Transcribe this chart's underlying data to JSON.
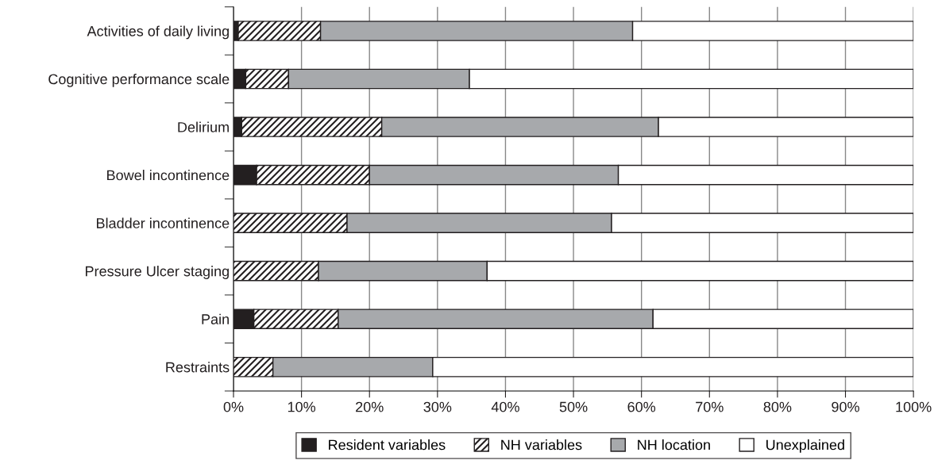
{
  "chart_data": {
    "type": "bar",
    "orientation": "horizontal",
    "stacked": true,
    "categories": [
      "Activities of daily living",
      "Cognitive performance scale",
      "Delirium",
      "Bowel incontinence",
      "Bladder incontinence",
      "Pressure Ulcer staging",
      "Pain",
      "Restraints"
    ],
    "series": [
      {
        "name": "Resident variables",
        "color": "#231f20",
        "values": [
          0.7,
          1.8,
          1.2,
          3.4,
          0,
          0,
          3.0,
          0
        ]
      },
      {
        "name": "NH variables",
        "color": "#231f20",
        "values": [
          12.1,
          6.3,
          20.6,
          16.6,
          16.7,
          12.5,
          12.4,
          5.8
        ]
      },
      {
        "name": "NH location",
        "color": "#a7a9ac",
        "values": [
          45.9,
          26.6,
          40.7,
          36.6,
          38.9,
          24.8,
          46.3,
          23.5
        ]
      },
      {
        "name": "Unexplained",
        "color": "#ffffff",
        "values": [
          41.3,
          65.3,
          37.5,
          43.4,
          44.4,
          62.7,
          38.3,
          70.7
        ]
      }
    ],
    "xlim": [
      0,
      100
    ],
    "xticks": [
      {
        "value": 0,
        "label": "0%"
      },
      {
        "value": 10,
        "label": "10%"
      },
      {
        "value": 20,
        "label": "20%"
      },
      {
        "value": 30,
        "label": "30%"
      },
      {
        "value": 40,
        "label": "40%"
      },
      {
        "value": 50,
        "label": "50%"
      },
      {
        "value": 60,
        "label": "60%"
      },
      {
        "value": 70,
        "label": "70%"
      },
      {
        "value": 80,
        "label": "80%"
      },
      {
        "value": 90,
        "label": "90%"
      },
      {
        "value": 100,
        "label": "100%"
      }
    ],
    "grid": "x",
    "legend": "bottom"
  }
}
